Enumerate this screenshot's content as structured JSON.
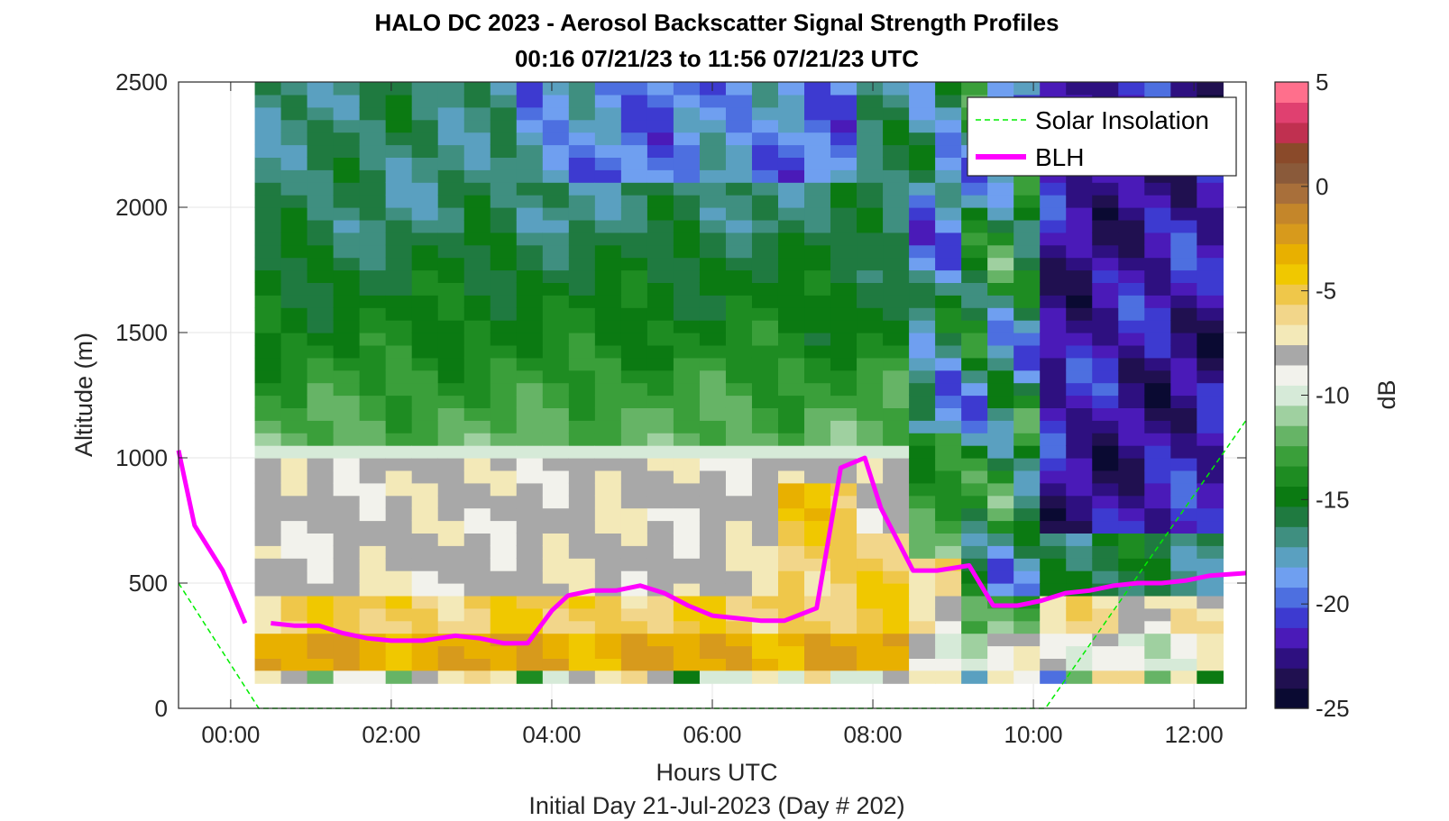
{
  "chart_data": {
    "type": "heatmap",
    "title": "HALO DC 2023 - Aerosol Backscatter Signal Strength Profiles",
    "subtitle": "00:16 07/21/23 to 11:56 07/21/23  UTC",
    "xlabel": "Hours UTC",
    "xlabel2": "Initial Day 21-Jul-2023 (Day # 202)",
    "ylabel": "Altitude (m)",
    "colorbar_label": "dB",
    "xlim": [
      -0.65,
      12.65
    ],
    "ylim": [
      0,
      2500
    ],
    "clim": [
      -25,
      5
    ],
    "grid": true,
    "legend_position": "top-right",
    "x_ticks": [
      0,
      2,
      4,
      6,
      8,
      10,
      12
    ],
    "x_tick_labels": [
      "00:00",
      "02:00",
      "04:00",
      "06:00",
      "08:00",
      "10:00",
      "12:00"
    ],
    "y_ticks": [
      0,
      500,
      1000,
      1500,
      2000,
      2500
    ],
    "y_tick_labels": [
      "0",
      "500",
      "1000",
      "1500",
      "2000",
      "2500"
    ],
    "colorbar_ticks": [
      -25,
      -20,
      -15,
      -10,
      -5,
      0,
      5
    ],
    "colorbar_tick_labels": [
      "-25",
      "-20",
      "-15",
      "-10",
      "-5",
      "0",
      "5"
    ],
    "series": [
      {
        "name": "Solar Insolation",
        "style": "dashed",
        "color": "#00ee00",
        "x": [
          -0.65,
          0.35,
          10.15,
          12.65
        ],
        "y": [
          500,
          0,
          0,
          1150
        ]
      },
      {
        "name": "BLH",
        "style": "solid",
        "color": "#ff00ff",
        "segments": [
          {
            "x": [
              -0.65,
              -0.45,
              -0.1,
              0.18
            ],
            "y": [
              1030,
              730,
              550,
              340
            ]
          },
          {
            "x": [
              0.5,
              0.8,
              1.1,
              1.4,
              1.7,
              2.0,
              2.4,
              2.8,
              3.1,
              3.4,
              3.7,
              4.0,
              4.2,
              4.5,
              4.8,
              5.1,
              5.4,
              5.7,
              6.0,
              6.3,
              6.6,
              6.9,
              7.3,
              7.6,
              7.9,
              8.1,
              8.5,
              8.8,
              9.2,
              9.5,
              9.8,
              10.1,
              10.4,
              10.7,
              11.0,
              11.3,
              11.6,
              11.9,
              12.2,
              12.65
            ],
            "y": [
              340,
              330,
              330,
              300,
              280,
              270,
              270,
              290,
              280,
              260,
              260,
              390,
              450,
              470,
              470,
              490,
              460,
              410,
              370,
              360,
              350,
              350,
              400,
              960,
              1000,
              800,
              550,
              550,
              570,
              410,
              410,
              430,
              460,
              470,
              490,
              500,
              500,
              510,
              530,
              540
            ]
          }
        ]
      }
    ],
    "colormap": [
      "#0a0a32",
      "#201050",
      "#2e1080",
      "#4a1ab8",
      "#3d3ad0",
      "#4d6fe0",
      "#6f9ff0",
      "#5aa0c0",
      "#3f8f80",
      "#1f7a40",
      "#0b7a12",
      "#1e8c22",
      "#3a9f3a",
      "#66b466",
      "#9fd0a0",
      "#d6ead8",
      "#f2f2ec",
      "#a8a8a8",
      "#f3e9b8",
      "#f2d68a",
      "#efc74a",
      "#f0c800",
      "#e8b000",
      "#d79a1c",
      "#c4862a",
      "#a86f3a",
      "#8a5a3a",
      "#8a4a2a",
      "#c03050",
      "#e04070",
      "#ff6f8c"
    ],
    "heatmap": {
      "x_start": 0.3,
      "x_step": 0.326,
      "n_cols": 37,
      "y_start": 150,
      "y_step": 50,
      "n_rows": 47,
      "surface_row_values_db": [
        -7,
        -8,
        -12,
        -9,
        -9,
        -12,
        -8,
        -7,
        -6,
        -7,
        -14,
        -10,
        -8,
        -7,
        -6,
        -8,
        -15,
        -10,
        -10,
        -7,
        -10,
        -6,
        -10,
        -10,
        -8,
        -7,
        -7,
        -18,
        -7,
        -9,
        -20,
        -12,
        -6,
        -6,
        -12,
        -7,
        -15
      ]
    }
  },
  "legend": {
    "solar_label": "Solar Insolation",
    "blh_label": "BLH"
  }
}
